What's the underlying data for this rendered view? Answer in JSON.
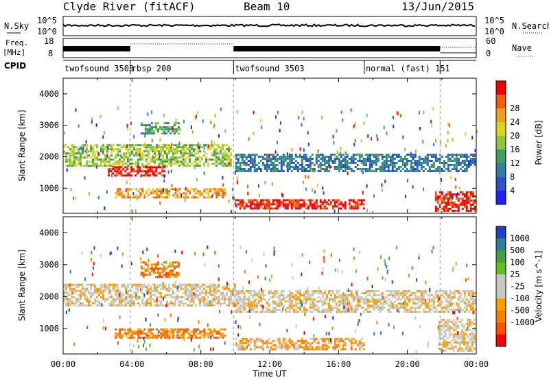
{
  "header": {
    "title": "Clyde River (fitACF)",
    "beam": "Beam 10",
    "date": "13/Jun/2015"
  },
  "sky_panel": {
    "left_label": "N.Sky",
    "left_ticks": [
      "10^5",
      "10^0"
    ],
    "right_ticks": [
      "10^5",
      "10^0"
    ],
    "right_label": "N.Search"
  },
  "freq_panel": {
    "left_label_1": "Freq.",
    "left_label_2": "[MHz]",
    "left_ticks": [
      "18",
      "8"
    ],
    "right_ticks": [
      "60",
      "0"
    ],
    "right_label": "Nave"
  },
  "cpid_panel": {
    "label": "CPID",
    "segments": [
      {
        "name": "twofsound 3503",
        "start": 0.0,
        "end": 3.9
      },
      {
        "name": "rbsp 200",
        "start": 3.9,
        "end": 9.9
      },
      {
        "name": "twofsound 3503",
        "start": 9.9,
        "end": 17.5
      },
      {
        "name": "normal (fast) 151",
        "start": 17.5,
        "end": 21.9
      }
    ]
  },
  "colors": {
    "power_scale": [
      "#2020ff",
      "#3050c8",
      "#2e7e9e",
      "#3f9e5e",
      "#8ec640",
      "#e0d020",
      "#f0a020",
      "#f06010",
      "#f00000"
    ],
    "velocity_scale": [
      "#ff0000",
      "#ff5000",
      "#f88000",
      "#f8a000",
      "#c8c8c4",
      "#c8c8c4",
      "#60c020",
      "#40a040",
      "#2e7e9e",
      "#2040c0"
    ]
  },
  "chart_data": [
    {
      "type": "heatmap",
      "name": "power",
      "xlabel": "",
      "ylabel": "Slant Range [km]",
      "xlim": [
        0,
        24
      ],
      "ylim": [
        200,
        4500
      ],
      "yticks": [
        "1000",
        "2000",
        "3000",
        "4000"
      ],
      "colorbar": {
        "label": "Power [dB]",
        "ticks": [
          "4",
          "8",
          "12",
          "16",
          "20",
          "24",
          "28"
        ]
      },
      "bands": [
        {
          "t0": 0.0,
          "t1": 9.8,
          "r0": 1700,
          "r1": 2400,
          "level": 4
        },
        {
          "t0": 2.6,
          "t1": 6.0,
          "r0": 1350,
          "r1": 1700,
          "level": 8
        },
        {
          "t0": 3.0,
          "t1": 9.5,
          "r0": 650,
          "r1": 1000,
          "level": 6
        },
        {
          "t0": 10.0,
          "t1": 24.0,
          "r0": 1500,
          "r1": 2100,
          "level": 2
        },
        {
          "t0": 10.0,
          "t1": 17.5,
          "r0": 300,
          "r1": 650,
          "level": 8
        },
        {
          "t0": 21.6,
          "t1": 24.0,
          "r0": 250,
          "r1": 900,
          "level": 8
        },
        {
          "t0": 4.5,
          "t1": 6.8,
          "r0": 2700,
          "r1": 3100,
          "level": 3
        }
      ]
    },
    {
      "type": "heatmap",
      "name": "velocity",
      "xlabel": "Time UT",
      "ylabel": "Slant Range [km]",
      "xlim": [
        0,
        24
      ],
      "ylim": [
        200,
        4500
      ],
      "xticks": [
        "00:00",
        "04:00",
        "08:00",
        "12:00",
        "16:00",
        "20:00",
        "00:00"
      ],
      "yticks": [
        "1000",
        "2000",
        "3000",
        "4000"
      ],
      "colorbar": {
        "label": "Velocity [m s^-1]",
        "ticks": [
          "1000",
          "500",
          "100",
          "25",
          "-25",
          "-100",
          "-500",
          "-1000"
        ]
      },
      "bands": [
        {
          "t0": 0.0,
          "t1": 10.0,
          "r0": 1700,
          "r1": 2400,
          "level": 4
        },
        {
          "t0": 10.0,
          "t1": 24.0,
          "r0": 1500,
          "r1": 2200,
          "level": 4
        },
        {
          "t0": 3.0,
          "t1": 9.5,
          "r0": 650,
          "r1": 1000,
          "level": 2
        },
        {
          "t0": 10.0,
          "t1": 17.5,
          "r0": 300,
          "r1": 700,
          "level": 3
        },
        {
          "t0": 21.8,
          "t1": 24.0,
          "r0": 250,
          "r1": 1300,
          "level": 4
        },
        {
          "t0": 4.5,
          "t1": 6.8,
          "r0": 2600,
          "r1": 3100,
          "level": 2
        }
      ]
    }
  ]
}
